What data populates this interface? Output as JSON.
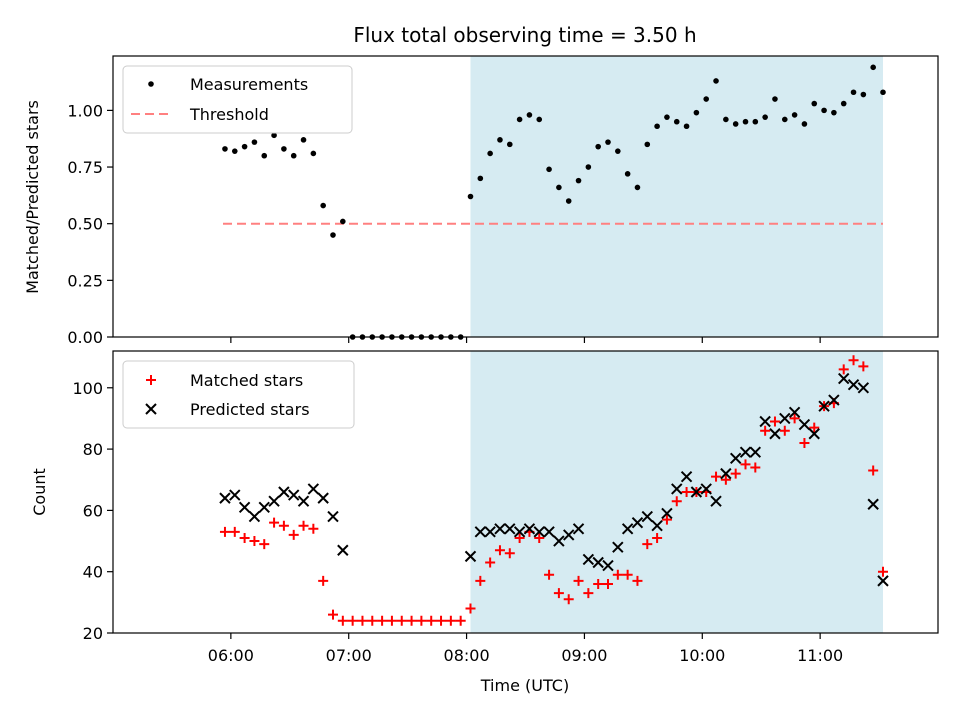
{
  "chart_data": [
    {
      "type": "scatter",
      "title": "Flux total observing time = 3.50 h",
      "ylabel": "Matched/Predicted stars",
      "ylim": [
        0,
        1.24
      ],
      "yticks": [
        "0.00",
        "0.25",
        "0.50",
        "0.75",
        "1.00"
      ],
      "ytick_values": [
        0,
        0.25,
        0.5,
        0.75,
        1.0
      ],
      "shaded_range": [
        "08:02",
        "11:32"
      ],
      "shade_color": "#add8e6",
      "legend_position": "upper-left",
      "threshold": {
        "name": "Threshold",
        "value": 0.5,
        "x_range": [
          "05:56",
          "11:32"
        ],
        "color": "#ff8080"
      },
      "series": [
        {
          "name": "Measurements",
          "color": "#000000",
          "marker": "dot",
          "x": [
            "05:57",
            "06:02",
            "06:07",
            "06:12",
            "06:17",
            "06:22",
            "06:27",
            "06:32",
            "06:37",
            "06:42",
            "06:47",
            "06:52",
            "06:57",
            "07:02",
            "07:07",
            "07:12",
            "07:17",
            "07:22",
            "07:27",
            "07:32",
            "07:37",
            "07:42",
            "07:47",
            "07:52",
            "07:57",
            "08:02",
            "08:07",
            "08:12",
            "08:17",
            "08:22",
            "08:27",
            "08:32",
            "08:37",
            "08:42",
            "08:47",
            "08:52",
            "08:57",
            "09:02",
            "09:07",
            "09:12",
            "09:17",
            "09:22",
            "09:27",
            "09:32",
            "09:37",
            "09:42",
            "09:47",
            "09:52",
            "09:57",
            "10:02",
            "10:07",
            "10:12",
            "10:17",
            "10:22",
            "10:27",
            "10:32",
            "10:37",
            "10:42",
            "10:47",
            "10:52",
            "10:57",
            "11:02",
            "11:07",
            "11:12",
            "11:17",
            "11:22",
            "11:27",
            "11:32"
          ],
          "y": [
            0.83,
            0.82,
            0.84,
            0.86,
            0.8,
            0.89,
            0.83,
            0.8,
            0.87,
            0.81,
            0.58,
            0.45,
            0.51,
            0.0,
            0.0,
            0.0,
            0.0,
            0.0,
            0.0,
            0.0,
            0.0,
            0.0,
            0.0,
            0.0,
            0.0,
            0.62,
            0.7,
            0.81,
            0.87,
            0.85,
            0.96,
            0.98,
            0.96,
            0.74,
            0.66,
            0.6,
            0.69,
            0.75,
            0.84,
            0.86,
            0.82,
            0.72,
            0.66,
            0.85,
            0.93,
            0.97,
            0.95,
            0.93,
            0.99,
            1.05,
            1.13,
            0.96,
            0.94,
            0.95,
            0.95,
            0.97,
            1.05,
            0.96,
            0.98,
            0.94,
            1.03,
            1.0,
            0.99,
            1.03,
            1.08,
            1.07,
            1.19,
            1.08
          ]
        }
      ]
    },
    {
      "type": "scatter",
      "xlabel": "Time (UTC)",
      "ylabel": "Count",
      "ylim": [
        20,
        112
      ],
      "yticks": [
        "20",
        "40",
        "60",
        "80",
        "100"
      ],
      "ytick_values": [
        20,
        40,
        60,
        80,
        100
      ],
      "xticks": [
        "06:00",
        "07:00",
        "08:00",
        "09:00",
        "10:00",
        "11:00"
      ],
      "shaded_range": [
        "08:02",
        "11:32"
      ],
      "shade_color": "#add8e6",
      "legend_position": "upper-left",
      "series": [
        {
          "name": "Matched stars",
          "color": "#ff0000",
          "marker": "plus",
          "x": [
            "05:57",
            "06:02",
            "06:07",
            "06:12",
            "06:17",
            "06:22",
            "06:27",
            "06:32",
            "06:37",
            "06:42",
            "06:47",
            "06:52",
            "06:57",
            "07:02",
            "07:07",
            "07:12",
            "07:17",
            "07:22",
            "07:27",
            "07:32",
            "07:37",
            "07:42",
            "07:47",
            "07:52",
            "07:57",
            "08:02",
            "08:07",
            "08:12",
            "08:17",
            "08:22",
            "08:27",
            "08:32",
            "08:37",
            "08:42",
            "08:47",
            "08:52",
            "08:57",
            "09:02",
            "09:07",
            "09:12",
            "09:17",
            "09:22",
            "09:27",
            "09:32",
            "09:37",
            "09:42",
            "09:47",
            "09:52",
            "09:57",
            "10:02",
            "10:07",
            "10:12",
            "10:17",
            "10:22",
            "10:27",
            "10:32",
            "10:37",
            "10:42",
            "10:47",
            "10:52",
            "10:57",
            "11:02",
            "11:07",
            "11:12",
            "11:17",
            "11:22",
            "11:27",
            "11:32"
          ],
          "y": [
            53,
            53,
            51,
            50,
            49,
            56,
            55,
            52,
            55,
            54,
            37,
            26,
            24,
            24,
            24,
            24,
            24,
            24,
            24,
            24,
            24,
            24,
            24,
            24,
            24,
            28,
            37,
            43,
            47,
            46,
            51,
            53,
            51,
            39,
            33,
            31,
            37,
            33,
            36,
            36,
            39,
            39,
            37,
            49,
            51,
            57,
            63,
            66,
            66,
            66,
            71,
            70,
            72,
            75,
            74,
            86,
            89,
            86,
            90,
            82,
            87,
            94,
            95,
            106,
            109,
            107,
            73,
            40
          ]
        },
        {
          "name": "Predicted stars",
          "color": "#000000",
          "marker": "x",
          "x": [
            "05:57",
            "06:02",
            "06:07",
            "06:12",
            "06:17",
            "06:22",
            "06:27",
            "06:32",
            "06:37",
            "06:42",
            "06:47",
            "06:52",
            "06:57",
            "08:02",
            "08:07",
            "08:12",
            "08:17",
            "08:22",
            "08:27",
            "08:32",
            "08:37",
            "08:42",
            "08:47",
            "08:52",
            "08:57",
            "09:02",
            "09:07",
            "09:12",
            "09:17",
            "09:22",
            "09:27",
            "09:32",
            "09:37",
            "09:42",
            "09:47",
            "09:52",
            "09:57",
            "10:02",
            "10:07",
            "10:12",
            "10:17",
            "10:22",
            "10:27",
            "10:32",
            "10:37",
            "10:42",
            "10:47",
            "10:52",
            "10:57",
            "11:02",
            "11:07",
            "11:12",
            "11:17",
            "11:22",
            "11:27",
            "11:32"
          ],
          "y": [
            64,
            65,
            61,
            58,
            61,
            63,
            66,
            65,
            63,
            67,
            64,
            58,
            47,
            45,
            53,
            53,
            54,
            54,
            53,
            54,
            53,
            53,
            50,
            52,
            54,
            44,
            43,
            42,
            48,
            54,
            56,
            58,
            55,
            59,
            67,
            71,
            66,
            67,
            63,
            72,
            77,
            79,
            79,
            89,
            85,
            90,
            92,
            88,
            85,
            94,
            96,
            103,
            101,
            100,
            62,
            37
          ]
        }
      ]
    }
  ]
}
